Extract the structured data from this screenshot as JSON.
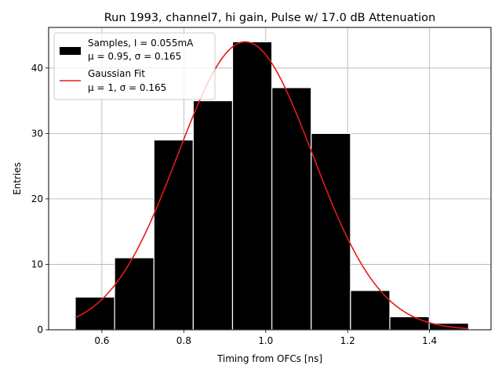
{
  "chart_data": {
    "type": "bar",
    "title": "Run 1993, channel7, hi gain, Pulse w/ 17.0 dB Attenuation",
    "xlabel": "Timing from OFCs [ns]",
    "ylabel": "Entries",
    "xlim": [
      0.47,
      1.55
    ],
    "ylim": [
      0,
      46.2
    ],
    "xticks": [
      0.6,
      0.8,
      1.0,
      1.2,
      1.4
    ],
    "xtick_labels": [
      "0.6",
      "0.8",
      "1.0",
      "1.2",
      "1.4"
    ],
    "yticks": [
      0,
      10,
      20,
      30,
      40
    ],
    "ytick_labels": [
      "0",
      "10",
      "20",
      "30",
      "40"
    ],
    "grid": true,
    "legend_position": "top-left",
    "bins": [
      {
        "x0": 0.535,
        "x1": 0.631,
        "value": 5
      },
      {
        "x0": 0.631,
        "x1": 0.727,
        "value": 11
      },
      {
        "x0": 0.727,
        "x1": 0.823,
        "value": 29
      },
      {
        "x0": 0.823,
        "x1": 0.919,
        "value": 35
      },
      {
        "x0": 0.919,
        "x1": 1.015,
        "value": 44
      },
      {
        "x0": 1.015,
        "x1": 1.111,
        "value": 37
      },
      {
        "x0": 1.111,
        "x1": 1.207,
        "value": 30
      },
      {
        "x0": 1.207,
        "x1": 1.303,
        "value": 6
      },
      {
        "x0": 1.303,
        "x1": 1.399,
        "value": 2
      },
      {
        "x0": 1.399,
        "x1": 1.495,
        "value": 1
      }
    ],
    "fit": {
      "amplitude": 44,
      "mean": 0.95,
      "sigma": 0.165,
      "x_range": [
        0.535,
        1.495
      ],
      "color": "#e41a1c"
    },
    "legend": [
      {
        "label_line1": "Samples, I = 0.055mA",
        "label_line2": "μ = 0.95, σ = 0.165",
        "color": "#000000",
        "kind": "patch"
      },
      {
        "label_line1": "Gaussian Fit",
        "label_line2": "μ = 1, σ = 0.165",
        "color": "#e41a1c",
        "kind": "line"
      }
    ]
  }
}
